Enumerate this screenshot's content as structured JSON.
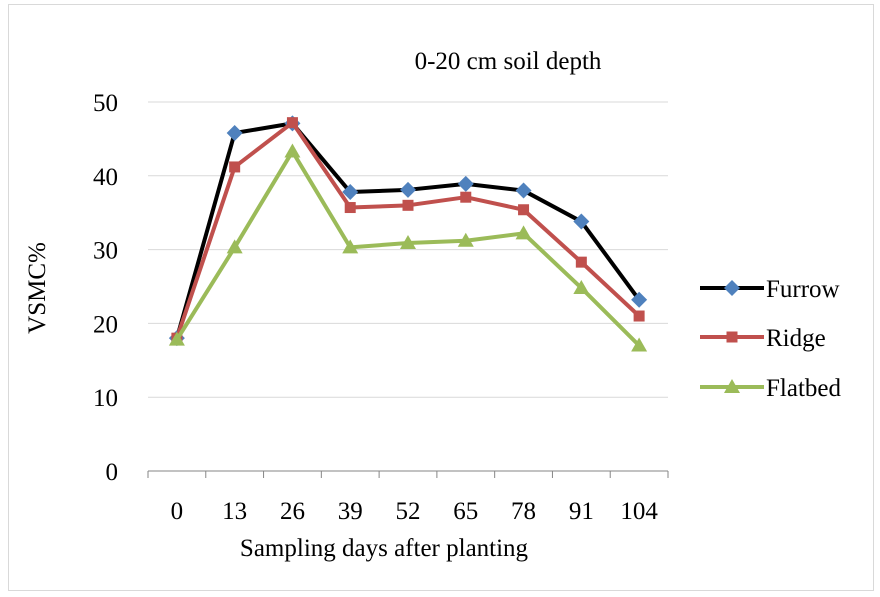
{
  "chart_data": {
    "type": "line",
    "title": "0-20 cm soil depth",
    "xlabel": "Sampling days  after planting",
    "ylabel": "VSMC%",
    "categories": [
      "0",
      "13",
      "26",
      "39",
      "52",
      "65",
      "78",
      "91",
      "104"
    ],
    "ylim": [
      0,
      50
    ],
    "yticks": [
      "0",
      "10",
      "20",
      "30",
      "40",
      "50"
    ],
    "grid": true,
    "legend_position": "right",
    "series": [
      {
        "name": "Furrow",
        "color": "#000000",
        "marker": "diamond",
        "marker_color": "#4f81bd",
        "values": [
          18.0,
          45.8,
          47.1,
          37.8,
          38.1,
          38.9,
          38.0,
          33.8,
          23.2
        ]
      },
      {
        "name": "Ridge",
        "color": "#c0504d",
        "marker": "square",
        "marker_color": "#c0504d",
        "values": [
          18.0,
          41.2,
          47.2,
          35.7,
          36.0,
          37.1,
          35.4,
          28.3,
          21.0
        ]
      },
      {
        "name": "Flatbed",
        "color": "#9bbb59",
        "marker": "triangle",
        "marker_color": "#9bbb59",
        "values": [
          17.8,
          30.3,
          43.3,
          30.3,
          30.9,
          31.2,
          32.2,
          24.8,
          17.0
        ]
      }
    ]
  }
}
